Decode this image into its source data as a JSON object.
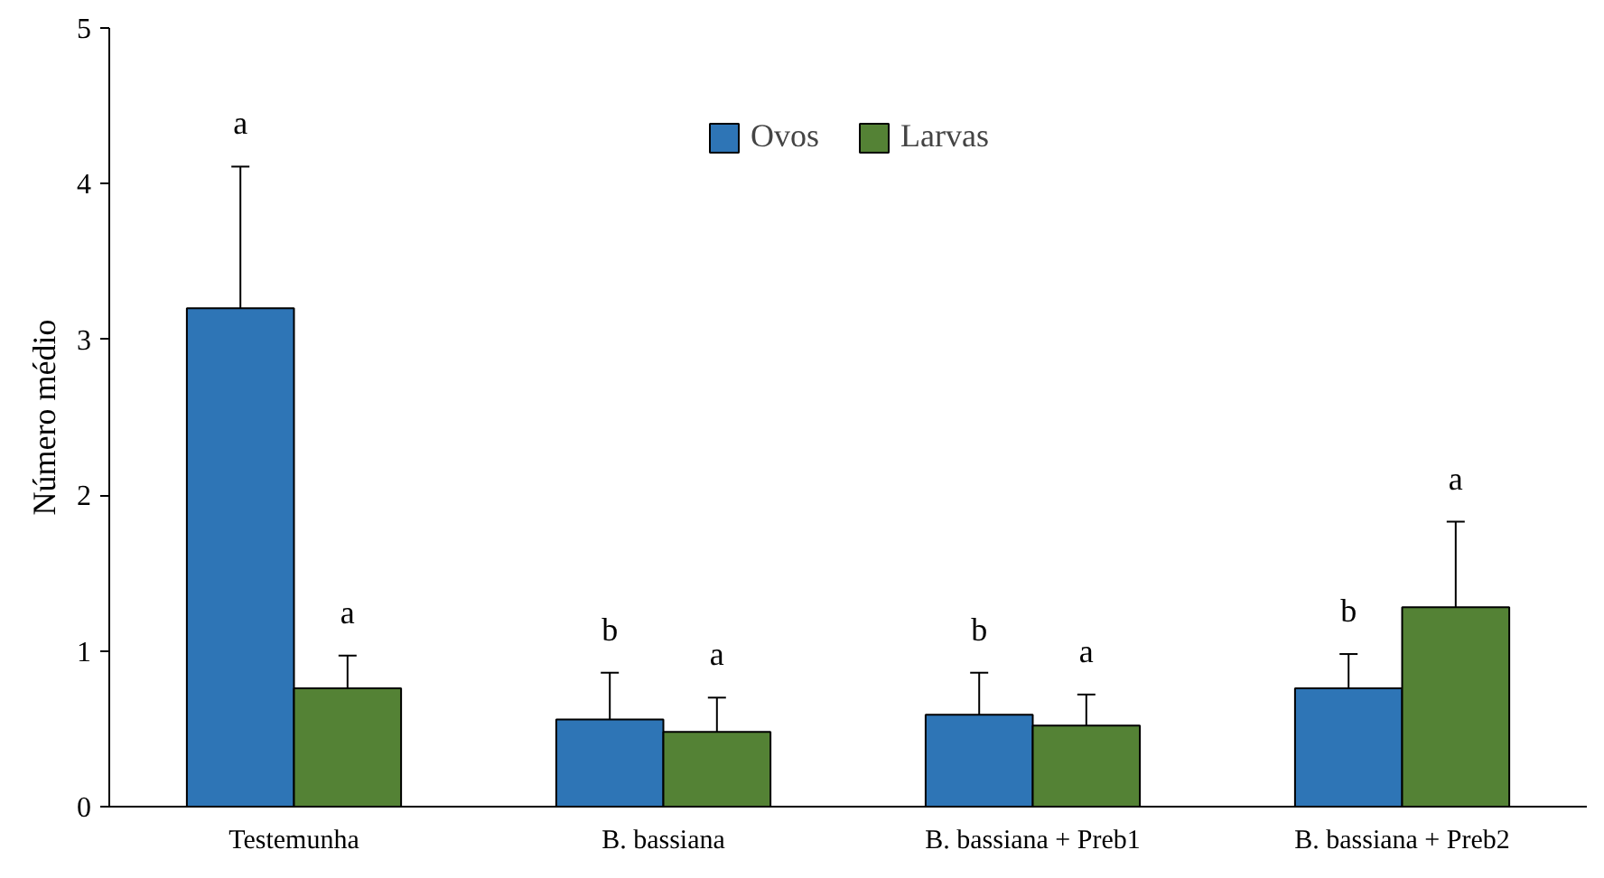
{
  "chart_data": {
    "type": "bar",
    "ylabel": "Número médio",
    "categories": [
      "Testemunha",
      "B. bassiana",
      "B. bassiana + Preb1",
      "B. bassiana + Preb2"
    ],
    "series": [
      {
        "name": "Ovos",
        "color": "#2e75b6",
        "values": [
          3.2,
          0.56,
          0.59,
          0.76
        ],
        "errors": [
          0.91,
          0.3,
          0.27,
          0.22
        ]
      },
      {
        "name": "Larvas",
        "color": "#548235",
        "values": [
          0.76,
          0.48,
          0.52,
          1.28
        ],
        "errors": [
          0.21,
          0.22,
          0.2,
          0.55
        ]
      }
    ],
    "ylim": [
      0,
      5
    ],
    "yticks": [
      0,
      1,
      2,
      3,
      4,
      5
    ],
    "grid": false,
    "legend": "top",
    "annotations": [
      "a",
      "a",
      "b",
      "a",
      "b",
      "a",
      "b",
      "a"
    ]
  }
}
